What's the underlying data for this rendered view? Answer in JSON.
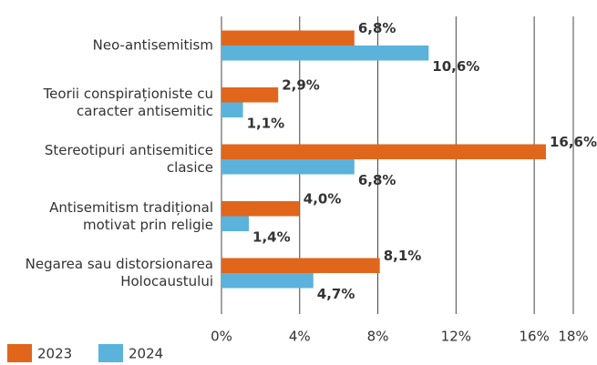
{
  "chart_data": {
    "type": "hbar",
    "categories": [
      "Neo-antisemitism",
      "Teorii conspiraționiste cu caracter antisemitic",
      "Stereotipuri antisemitice clasice",
      "Antisemitism tradițional motivat prin religie",
      "Negarea sau distorsionarea Holocaustului"
    ],
    "series": [
      {
        "name": "2023",
        "color": "#e0661c",
        "values": [
          6.8,
          2.9,
          16.6,
          4.0,
          8.1
        ],
        "value_labels": [
          "6,8%",
          "2,9%",
          "16,6%",
          "4,0%",
          "8,1%"
        ]
      },
      {
        "name": "2024",
        "color": "#5bb3dc",
        "values": [
          10.6,
          1.1,
          6.8,
          1.4,
          4.7
        ],
        "value_labels": [
          "10,6%",
          "1,1%",
          "6,8%",
          "1,4%",
          "4,7%"
        ]
      }
    ],
    "xlim": [
      0,
      18
    ],
    "xticks": [
      {
        "value": 0,
        "label": "0%"
      },
      {
        "value": 4,
        "label": "4%"
      },
      {
        "value": 8,
        "label": "8%"
      },
      {
        "value": 12,
        "label": "12%"
      },
      {
        "value": 16,
        "label": "16%"
      },
      {
        "value": 18,
        "label": "18%"
      }
    ],
    "grid": true,
    "legend": "bottom-left"
  }
}
